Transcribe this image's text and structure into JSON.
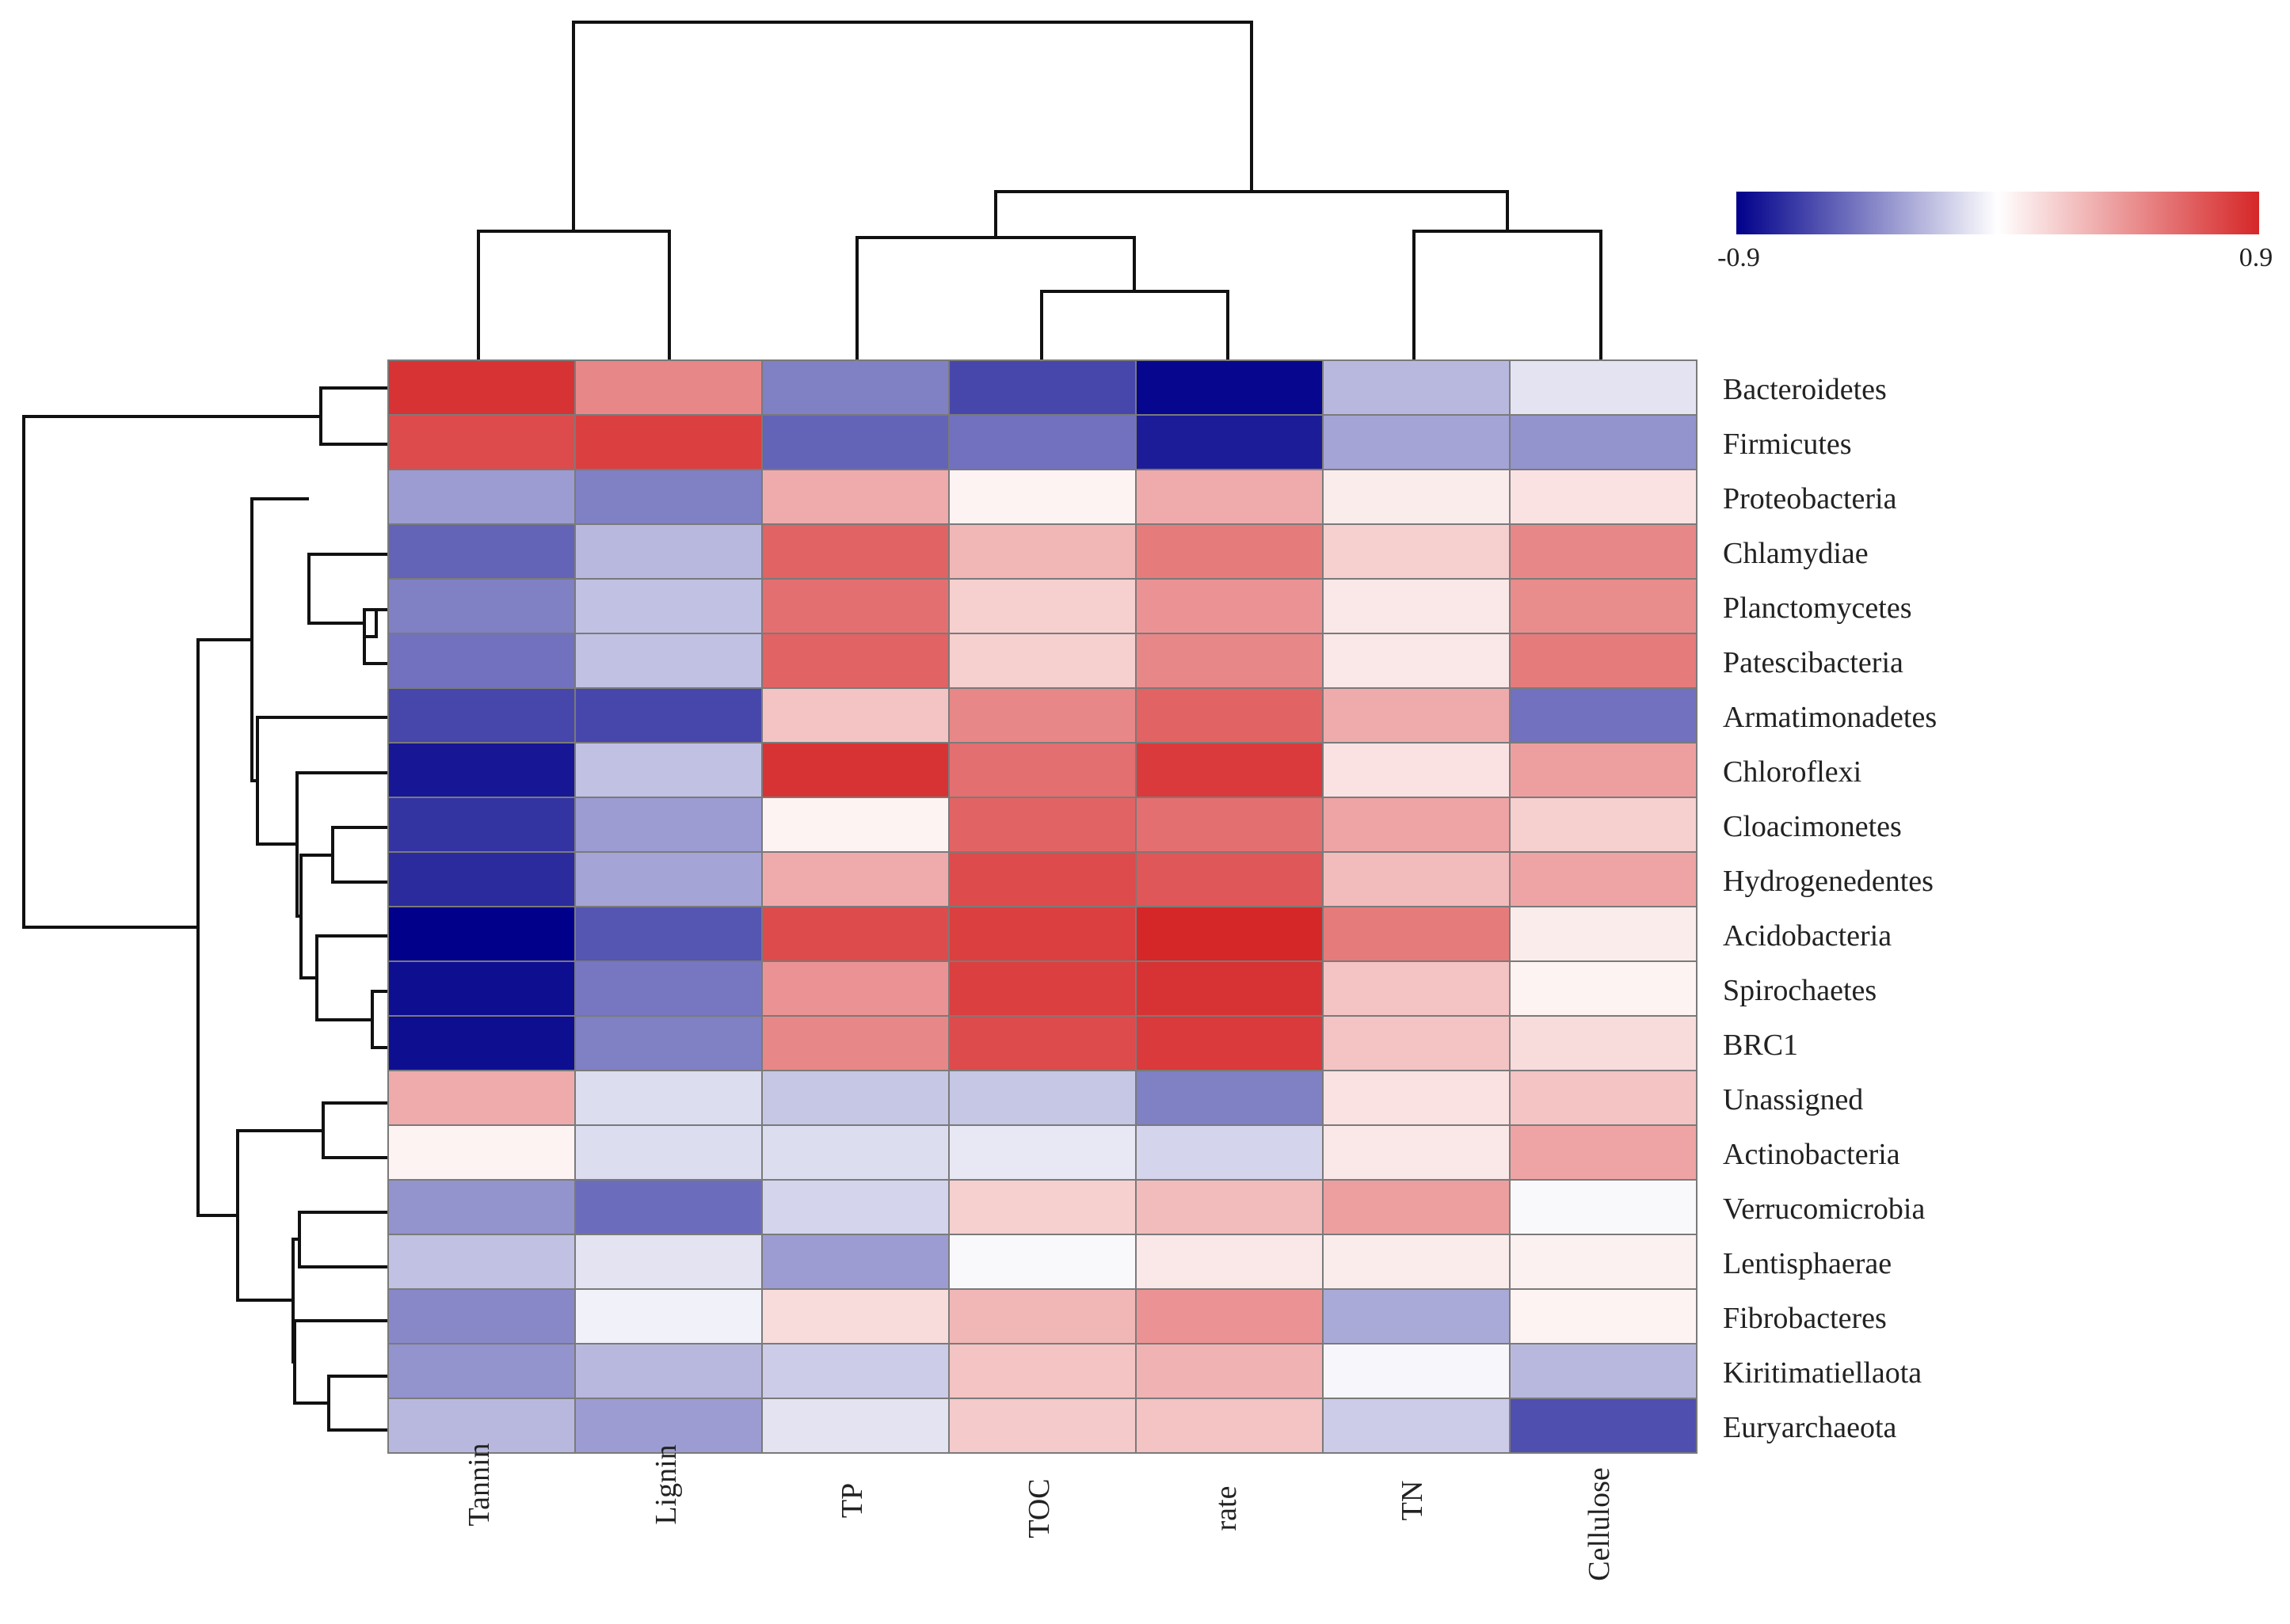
{
  "chart_data": {
    "type": "heatmap",
    "title": "",
    "columns": [
      "Tannin",
      "Lignin",
      "TP",
      "TOC",
      "rate",
      "TN",
      "Cellulose"
    ],
    "rows": [
      "Bacteroidetes",
      "Firmicutes",
      "Proteobacteria",
      "Chlamydiae",
      "Planctomycetes",
      "Patescibacteria",
      "Armatimonadetes",
      "Chloroflexi",
      "Cloacimonetes",
      "Hydrogenedentes",
      "Acidobacteria",
      "Spirochaetes",
      "BRC1",
      "Unassigned",
      "Actinobacteria",
      "Verrucomicrobia",
      "Lentisphaerae",
      "Fibrobacteres",
      "Kiritimatiellaota",
      "Euryarchaeota"
    ],
    "values": [
      [
        0.85,
        0.5,
        -0.45,
        -0.65,
        -0.88,
        -0.25,
        -0.1
      ],
      [
        0.75,
        0.8,
        -0.55,
        -0.5,
        -0.8,
        -0.32,
        -0.38
      ],
      [
        -0.35,
        -0.45,
        0.35,
        0.05,
        0.35,
        0.08,
        0.12
      ],
      [
        -0.55,
        -0.25,
        0.65,
        0.3,
        0.55,
        0.2,
        0.5
      ],
      [
        -0.45,
        -0.22,
        0.6,
        0.2,
        0.45,
        0.1,
        0.48
      ],
      [
        -0.5,
        -0.22,
        0.65,
        0.2,
        0.5,
        0.1,
        0.55
      ],
      [
        -0.65,
        -0.65,
        0.25,
        0.5,
        0.65,
        0.35,
        -0.5
      ],
      [
        -0.82,
        -0.22,
        0.85,
        0.6,
        0.82,
        0.12,
        0.4
      ],
      [
        -0.72,
        -0.35,
        0.05,
        0.65,
        0.6,
        0.38,
        0.2
      ],
      [
        -0.75,
        -0.32,
        0.35,
        0.75,
        0.7,
        0.28,
        0.38
      ],
      [
        -0.9,
        -0.6,
        0.75,
        0.8,
        0.9,
        0.55,
        0.08
      ],
      [
        -0.85,
        -0.48,
        0.45,
        0.8,
        0.85,
        0.25,
        0.05
      ],
      [
        -0.85,
        -0.45,
        0.5,
        0.75,
        0.82,
        0.25,
        0.15
      ],
      [
        0.35,
        -0.12,
        -0.2,
        -0.2,
        -0.45,
        0.12,
        0.25
      ],
      [
        0.05,
        -0.12,
        -0.12,
        -0.08,
        -0.15,
        0.1,
        0.38
      ],
      [
        -0.38,
        -0.52,
        -0.15,
        0.2,
        0.28,
        0.4,
        -0.02
      ],
      [
        -0.22,
        -0.1,
        -0.35,
        -0.02,
        0.1,
        0.08,
        0.06
      ],
      [
        -0.42,
        -0.05,
        0.15,
        0.3,
        0.45,
        -0.3,
        0.05
      ],
      [
        -0.38,
        -0.25,
        -0.18,
        0.25,
        0.32,
        -0.03,
        -0.25
      ],
      [
        -0.25,
        -0.35,
        -0.1,
        0.22,
        0.25,
        -0.18,
        -0.62
      ]
    ],
    "color_scale": {
      "min": -0.9,
      "max": 0.9,
      "min_label": "-0.9",
      "max_label": "0.9",
      "low_color": "#00008b",
      "mid_color": "#ffffff",
      "high_color": "#d62728"
    },
    "row_dendrogram": "hierarchical clustering of rows (shown on left)",
    "column_dendrogram": "hierarchical clustering of columns (shown on top)"
  }
}
